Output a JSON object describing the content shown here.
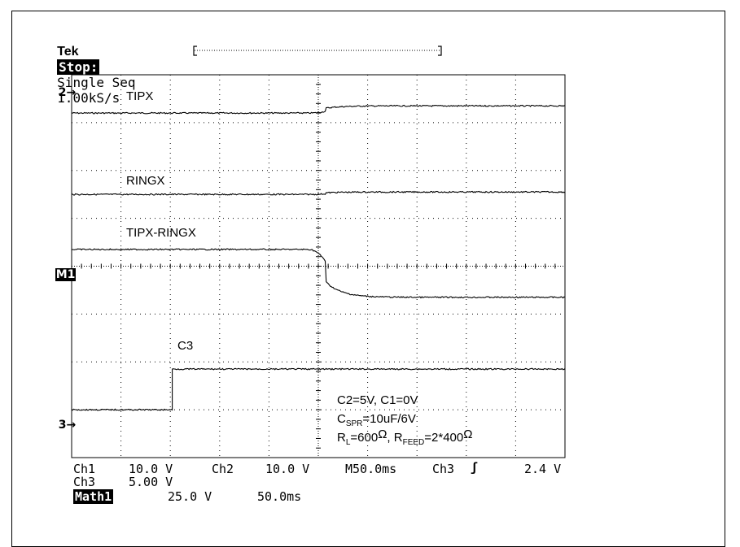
{
  "header": {
    "brand": "Tek",
    "state": "Stop:",
    "mode": "Single Seq",
    "rate": "1.00kS/s"
  },
  "channel_markers": {
    "ch2": "2",
    "math": "M1",
    "ch3": "3"
  },
  "readouts": {
    "ch1_name": "Ch1",
    "ch1_scale": "10.0 V",
    "ch2_name": "Ch2",
    "ch2_scale": "10.0 V",
    "timebase": "M50.0ms",
    "trigger_source": "Ch3",
    "trigger_slope": "ʃ",
    "trigger_level": "2.4 V",
    "ch3_name": "Ch3",
    "ch3_scale": "5.00 V",
    "math_name": "Math1",
    "math_scale": "25.0 V",
    "math_time": "50.0ms"
  },
  "chart_data": {
    "type": "line",
    "grid": true,
    "x_divisions": 10,
    "y_divisions": 8,
    "series": [
      {
        "name": "TIPX",
        "start_level_div": 0.8,
        "end_level_div": 0.65,
        "transition_div": 5.1
      },
      {
        "name": "RINGX",
        "start_level_div": 2.5,
        "end_level_div": 2.45,
        "transition_div": 5.1
      },
      {
        "name": "TIPX-RINGX",
        "start_level_div": 3.65,
        "end_level_div": 4.65,
        "transition_div": 5.1
      },
      {
        "name": "C3",
        "start_level_div": 7.0,
        "end_level_div": 6.15,
        "transition_div": 2.05
      }
    ],
    "annotations": {
      "line1": "C2=5V, C1=0V",
      "line2_main": "C",
      "line2_sub": "SPR",
      "line2_rest": "=10uF/6V",
      "line3_r": "R",
      "line3_rsub": "L",
      "line3_rval": "=600",
      "line3_ohm": "Ω",
      "line3_sep": ", R",
      "line3_fsub": "FEED",
      "line3_fval": "=2*400",
      "line3_ohm2": "Ω"
    },
    "colors": {
      "trace": "#000000",
      "grid": "#000000",
      "background": "#ffffff"
    }
  }
}
